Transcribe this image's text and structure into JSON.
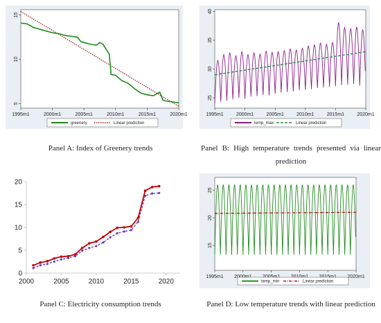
{
  "captions": {
    "a": "Panel A: Index of Greenery trends",
    "b": "Panel B: High temperature trends presented via linear prediction",
    "c": "Panel C: Electricity consumption trends",
    "d": "Panel D: Low temperature trends with linear prediction"
  },
  "colors": {
    "greenery": "#1a8a1a",
    "pred_red": "#9b1b1b",
    "temp_max": "#8a1c8a",
    "pred_green": "#2e8b57",
    "temp_min": "#1e8c1e",
    "elec_red": "#c00000",
    "elec_blue": "#6a3fbf",
    "stata_bg": "#e9eff4"
  },
  "chart_data": [
    {
      "id": "A",
      "type": "line",
      "x_ticks": [
        "1995m1",
        "2000m1",
        "2005m1",
        "2010m1",
        "2015m1",
        "2020m1"
      ],
      "ylim": [
        4.5,
        15.6
      ],
      "y_ticks": [
        5,
        10,
        15
      ],
      "series": [
        {
          "name": "greenery",
          "style": "solid",
          "x": [
            1995,
            1996,
            1997,
            1998,
            1999,
            2000,
            2001,
            2002,
            2003,
            2004,
            2004.5,
            2005,
            2006,
            2007,
            2007.5,
            2008,
            2009,
            2009.3,
            2010,
            2011,
            2012,
            2013,
            2014,
            2015,
            2016,
            2017,
            2017.5,
            2018,
            2019,
            2020
          ],
          "y": [
            14.1,
            14.0,
            13.6,
            13.4,
            13.2,
            13.0,
            12.9,
            12.7,
            12.6,
            12.5,
            12.0,
            11.9,
            11.7,
            11.6,
            11.9,
            11.7,
            10.6,
            8.3,
            8.2,
            7.6,
            7.3,
            6.7,
            6.2,
            6.0,
            5.9,
            6.3,
            5.4,
            5.3,
            5.2,
            5.1
          ]
        },
        {
          "name": "Linear prediction",
          "style": "dotted",
          "x": [
            1995,
            2020
          ],
          "y": [
            15.4,
            4.7
          ]
        }
      ]
    },
    {
      "id": "B",
      "type": "line",
      "x_ticks": [
        "1995m1",
        "2000m1",
        "2005m1",
        "2010m1",
        "2015m1",
        "2020m1"
      ],
      "ylim": [
        23.2,
        40.3
      ],
      "y_ticks": [
        25,
        30,
        35,
        40
      ],
      "series": [
        {
          "name": "temp_max",
          "style": "solid",
          "seasonal": true,
          "year_start": 1995,
          "year_end": 2020,
          "peaks": [
            31.5,
            32.5,
            32.8,
            32.3,
            33.0,
            32.5,
            32.8,
            32.6,
            33.1,
            32.9,
            33.0,
            33.2,
            33.5,
            33.3,
            33.6,
            34.0,
            34.2,
            34.5,
            34.3,
            34.6,
            38.1,
            37.2,
            37.0,
            37.3,
            36.8
          ],
          "troughs": [
            24.0,
            24.3,
            24.5,
            24.7,
            25.0,
            24.8,
            25.2,
            25.3,
            25.5,
            25.4,
            25.7,
            25.9,
            26.0,
            26.1,
            26.3,
            26.4,
            26.5,
            26.7,
            26.8,
            26.9,
            27.0,
            27.2,
            27.3,
            27.4,
            27.1
          ]
        },
        {
          "name": "Linear prediction",
          "style": "dashed",
          "x": [
            1995,
            2020
          ],
          "y": [
            29.0,
            33.0
          ]
        }
      ]
    },
    {
      "id": "C",
      "type": "line",
      "xlim": [
        2000,
        2022
      ],
      "x_ticks": [
        2000,
        2005,
        2010,
        2015,
        2020
      ],
      "ylim": [
        0,
        20
      ],
      "y_ticks": [
        0,
        5,
        10,
        15,
        20
      ],
      "series": [
        {
          "style": "solid-red",
          "x": [
            2001,
            2002,
            2003,
            2004,
            2005,
            2006,
            2007,
            2008,
            2009,
            2010,
            2011,
            2012,
            2013,
            2014,
            2015,
            2016,
            2017,
            2018,
            2019
          ],
          "y": [
            1.7,
            2.3,
            2.6,
            3.2,
            3.6,
            3.7,
            4.1,
            5.5,
            6.5,
            6.9,
            7.9,
            9.0,
            9.9,
            10.0,
            10.2,
            12.1,
            18.0,
            18.8,
            19.0
          ]
        },
        {
          "style": "dashed-blue",
          "x": [
            2001,
            2002,
            2003,
            2004,
            2005,
            2006,
            2007,
            2008,
            2009,
            2010,
            2011,
            2012,
            2013,
            2014,
            2015,
            2016,
            2017,
            2018,
            2019
          ],
          "y": [
            1.1,
            1.7,
            2.0,
            2.5,
            3.0,
            3.3,
            3.7,
            4.9,
            5.5,
            5.9,
            6.7,
            7.8,
            8.7,
            9.1,
            9.4,
            11.2,
            16.9,
            17.4,
            17.5
          ]
        }
      ]
    },
    {
      "id": "D",
      "type": "line",
      "x_ticks": [
        "1995m1",
        "2000m1",
        "2005m1",
        "2010m1",
        "2015m1",
        "2020m1"
      ],
      "ylim": [
        10.5,
        27.3
      ],
      "y_ticks": [
        15,
        20,
        25
      ],
      "series": [
        {
          "name": "temp_min",
          "style": "solid",
          "seasonal": true,
          "year_start": 1995,
          "year_end": 2020,
          "peak": 26.0,
          "trough": 13.3
        },
        {
          "name": "Linear prediction",
          "style": "dashdot",
          "x": [
            1995,
            2020
          ],
          "y": [
            20.8,
            21.0
          ]
        }
      ]
    }
  ]
}
